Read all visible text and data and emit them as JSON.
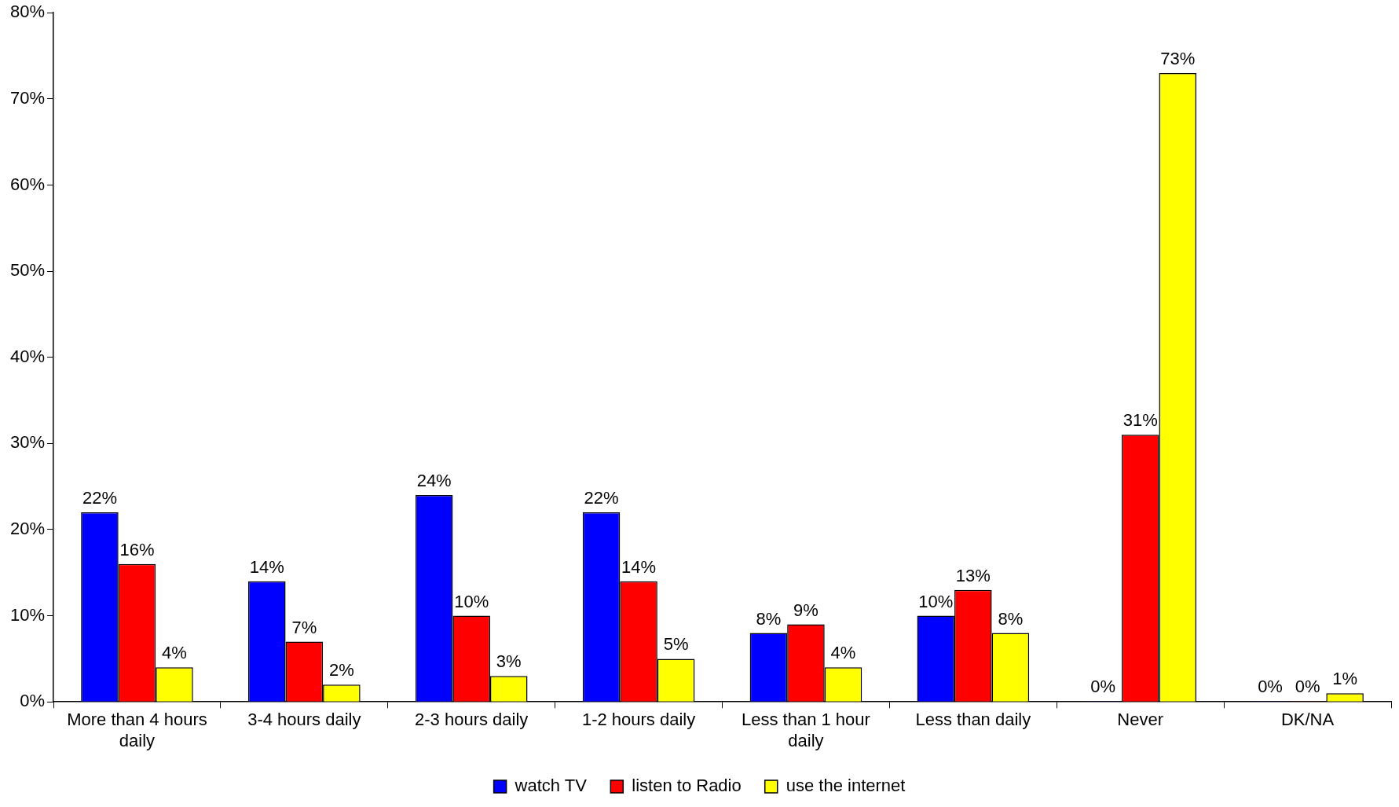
{
  "chart_data": {
    "type": "bar",
    "categories": [
      "More than 4 hours daily",
      "3-4 hours daily",
      "2-3 hours daily",
      "1-2 hours daily",
      "Less than 1 hour daily",
      "Less than daily",
      "Never",
      "DK/NA"
    ],
    "series": [
      {
        "name": "watch TV",
        "color": "#0000ff",
        "values": [
          22,
          14,
          24,
          22,
          8,
          10,
          0,
          0
        ],
        "value_labels": [
          "22%",
          "14%",
          "24%",
          "22%",
          "8%",
          "10%",
          "0%",
          "0%"
        ]
      },
      {
        "name": "listen to Radio",
        "color": "#ff0000",
        "values": [
          16,
          7,
          10,
          14,
          9,
          13,
          31,
          0
        ],
        "value_labels": [
          "16%",
          "7%",
          "10%",
          "14%",
          "9%",
          "13%",
          "31%",
          "0%"
        ]
      },
      {
        "name": "use the internet",
        "color": "#ffff00",
        "values": [
          4,
          2,
          3,
          5,
          4,
          8,
          73,
          1
        ],
        "value_labels": [
          "4%",
          "2%",
          "3%",
          "5%",
          "4%",
          "8%",
          "73%",
          "1%"
        ]
      }
    ],
    "ylim": [
      0,
      80
    ],
    "yticks": [
      {
        "value": 0,
        "label": "0%"
      },
      {
        "value": 10,
        "label": "10%"
      },
      {
        "value": 20,
        "label": "20%"
      },
      {
        "value": 30,
        "label": "30%"
      },
      {
        "value": 40,
        "label": "40%"
      },
      {
        "value": 50,
        "label": "50%"
      },
      {
        "value": 60,
        "label": "60%"
      },
      {
        "value": 70,
        "label": "70%"
      },
      {
        "value": 80,
        "label": "80%"
      }
    ],
    "grid": false,
    "legend": "bottom"
  }
}
